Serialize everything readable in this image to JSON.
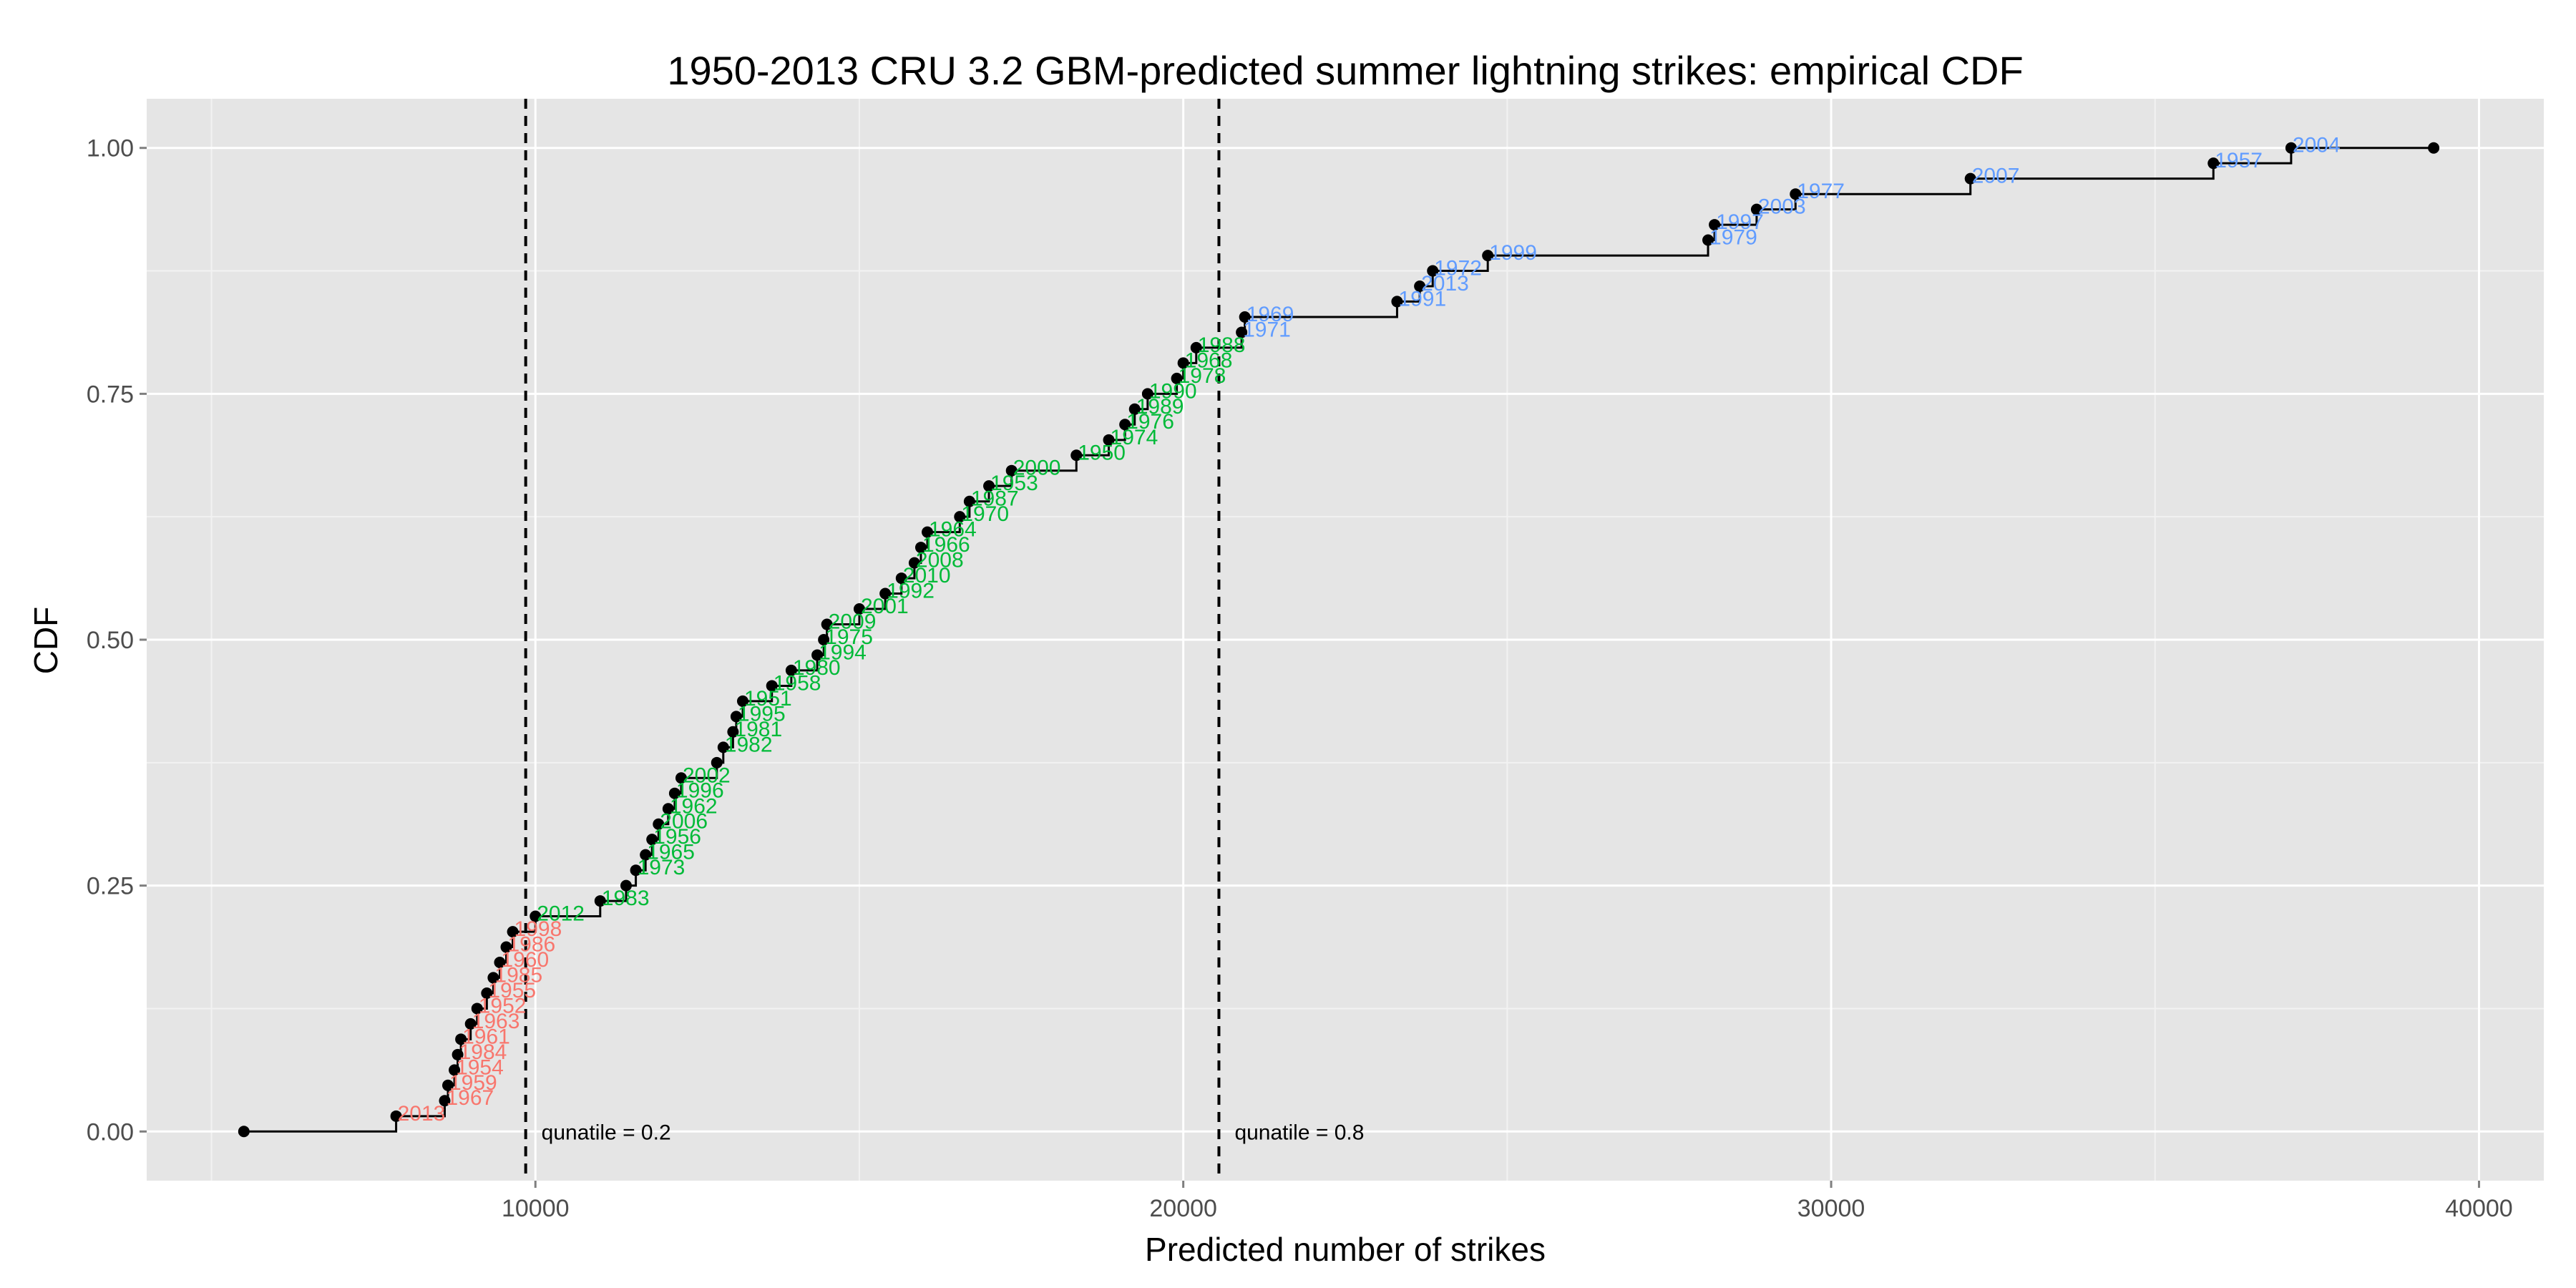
{
  "chart_data": {
    "type": "step-ecdf",
    "title": "1950-2013 CRU 3.2 GBM-predicted summer lightning strikes: empirical CDF",
    "xlabel": "Predicted number of strikes",
    "ylabel": "CDF",
    "xlim": [
      4000,
      41000
    ],
    "ylim": [
      -0.05,
      1.05
    ],
    "x_ticks": [
      10000,
      20000,
      30000,
      40000
    ],
    "x_tick_labels": [
      "10000",
      "20000",
      "30000",
      "40000"
    ],
    "y_ticks": [
      0,
      0.25,
      0.5,
      0.75,
      1
    ],
    "y_tick_labels": [
      "0.00",
      "0.25",
      "0.50",
      "0.75",
      "1.00"
    ],
    "grid": true,
    "colors": {
      "panel": "#e5e5e5",
      "grid": "#ffffff",
      "low": "#F8766D",
      "mid": "#00BA38",
      "high": "#619CFF",
      "line": "#000000"
    },
    "vlines": [
      {
        "x": 9850,
        "label": "qunatile = 0.2"
      },
      {
        "x": 20550,
        "label": "qunatile = 0.8"
      }
    ],
    "endpoints": [
      {
        "x": 5500,
        "y": 0
      },
      {
        "x": 39300,
        "y": 1
      }
    ],
    "points": [
      {
        "x": 7850,
        "y": 0.0156,
        "label": "2013",
        "group": "low"
      },
      {
        "x": 8600,
        "y": 0.0313,
        "label": "1967",
        "group": "low"
      },
      {
        "x": 8650,
        "y": 0.0469,
        "label": "1959",
        "group": "low"
      },
      {
        "x": 8750,
        "y": 0.0625,
        "label": "1954",
        "group": "low"
      },
      {
        "x": 8800,
        "y": 0.0781,
        "label": "1984",
        "group": "low"
      },
      {
        "x": 8850,
        "y": 0.0938,
        "label": "1961",
        "group": "low"
      },
      {
        "x": 9000,
        "y": 0.1094,
        "label": "1963",
        "group": "low"
      },
      {
        "x": 9100,
        "y": 0.125,
        "label": "1952",
        "group": "low"
      },
      {
        "x": 9250,
        "y": 0.1406,
        "label": "1955",
        "group": "low"
      },
      {
        "x": 9350,
        "y": 0.1563,
        "label": "1985",
        "group": "low"
      },
      {
        "x": 9450,
        "y": 0.1719,
        "label": "1960",
        "group": "low"
      },
      {
        "x": 9550,
        "y": 0.1875,
        "label": "1986",
        "group": "low"
      },
      {
        "x": 9650,
        "y": 0.2031,
        "label": "1998",
        "group": "low"
      },
      {
        "x": 10000,
        "y": 0.2188,
        "label": "2012",
        "group": "mid"
      },
      {
        "x": 11000,
        "y": 0.2344,
        "label": "1983",
        "group": "mid"
      },
      {
        "x": 11400,
        "y": 0.25,
        "label": "",
        "group": "mid"
      },
      {
        "x": 11550,
        "y": 0.2656,
        "label": "1973",
        "group": "mid"
      },
      {
        "x": 11700,
        "y": 0.2813,
        "label": "1965",
        "group": "mid"
      },
      {
        "x": 11800,
        "y": 0.2969,
        "label": "1956",
        "group": "mid"
      },
      {
        "x": 11900,
        "y": 0.3125,
        "label": "2006",
        "group": "mid"
      },
      {
        "x": 12050,
        "y": 0.3281,
        "label": "1962",
        "group": "mid"
      },
      {
        "x": 12150,
        "y": 0.3438,
        "label": "1996",
        "group": "mid"
      },
      {
        "x": 12250,
        "y": 0.3594,
        "label": "2002",
        "group": "mid"
      },
      {
        "x": 12800,
        "y": 0.375,
        "label": "",
        "group": "mid"
      },
      {
        "x": 12900,
        "y": 0.3906,
        "label": "1982",
        "group": "mid"
      },
      {
        "x": 13050,
        "y": 0.4063,
        "label": "1981",
        "group": "mid"
      },
      {
        "x": 13100,
        "y": 0.4219,
        "label": "1995",
        "group": "mid"
      },
      {
        "x": 13200,
        "y": 0.4375,
        "label": "1951",
        "group": "mid"
      },
      {
        "x": 13650,
        "y": 0.4531,
        "label": "1958",
        "group": "mid"
      },
      {
        "x": 13950,
        "y": 0.4688,
        "label": "1980",
        "group": "mid"
      },
      {
        "x": 14350,
        "y": 0.4844,
        "label": "1994",
        "group": "mid"
      },
      {
        "x": 14450,
        "y": 0.5,
        "label": "1975",
        "group": "mid"
      },
      {
        "x": 14500,
        "y": 0.5156,
        "label": "2009",
        "group": "mid"
      },
      {
        "x": 15000,
        "y": 0.5313,
        "label": "2001",
        "group": "mid"
      },
      {
        "x": 15400,
        "y": 0.5469,
        "label": "1992",
        "group": "mid"
      },
      {
        "x": 15650,
        "y": 0.5625,
        "label": "2010",
        "group": "mid"
      },
      {
        "x": 15850,
        "y": 0.5781,
        "label": "2008",
        "group": "mid"
      },
      {
        "x": 15950,
        "y": 0.5938,
        "label": "1966",
        "group": "mid"
      },
      {
        "x": 16050,
        "y": 0.6094,
        "label": "1964",
        "group": "mid"
      },
      {
        "x": 16550,
        "y": 0.625,
        "label": "1970",
        "group": "mid"
      },
      {
        "x": 16700,
        "y": 0.6406,
        "label": "1987",
        "group": "mid"
      },
      {
        "x": 17000,
        "y": 0.6563,
        "label": "1953",
        "group": "mid"
      },
      {
        "x": 17350,
        "y": 0.6719,
        "label": "2000",
        "group": "mid"
      },
      {
        "x": 18350,
        "y": 0.6875,
        "label": "1950",
        "group": "mid"
      },
      {
        "x": 18850,
        "y": 0.7031,
        "label": "1974",
        "group": "mid"
      },
      {
        "x": 19100,
        "y": 0.7188,
        "label": "1976",
        "group": "mid"
      },
      {
        "x": 19250,
        "y": 0.7344,
        "label": "1989",
        "group": "mid"
      },
      {
        "x": 19450,
        "y": 0.75,
        "label": "1990",
        "group": "mid"
      },
      {
        "x": 19900,
        "y": 0.7656,
        "label": "1978",
        "group": "mid"
      },
      {
        "x": 20000,
        "y": 0.7813,
        "label": "1968",
        "group": "mid"
      },
      {
        "x": 20200,
        "y": 0.7969,
        "label": "1988",
        "group": "mid"
      },
      {
        "x": 20900,
        "y": 0.8125,
        "label": "1971",
        "group": "high"
      },
      {
        "x": 20950,
        "y": 0.8281,
        "label": "1969",
        "group": "high"
      },
      {
        "x": 23300,
        "y": 0.8438,
        "label": "1991",
        "group": "high"
      },
      {
        "x": 23650,
        "y": 0.8594,
        "label": "2013",
        "group": "high"
      },
      {
        "x": 23850,
        "y": 0.875,
        "label": "1972",
        "group": "high"
      },
      {
        "x": 24700,
        "y": 0.8906,
        "label": "1999",
        "group": "high"
      },
      {
        "x": 28100,
        "y": 0.9063,
        "label": "1979",
        "group": "high"
      },
      {
        "x": 28200,
        "y": 0.9219,
        "label": "1997",
        "group": "high"
      },
      {
        "x": 28850,
        "y": 0.9375,
        "label": "2003",
        "group": "high"
      },
      {
        "x": 29450,
        "y": 0.9531,
        "label": "1977",
        "group": "high"
      },
      {
        "x": 32150,
        "y": 0.9688,
        "label": "2007",
        "group": "high"
      },
      {
        "x": 35900,
        "y": 0.9844,
        "label": "1957",
        "group": "high"
      },
      {
        "x": 37100,
        "y": 1.0,
        "label": "2004",
        "group": "high"
      }
    ]
  }
}
